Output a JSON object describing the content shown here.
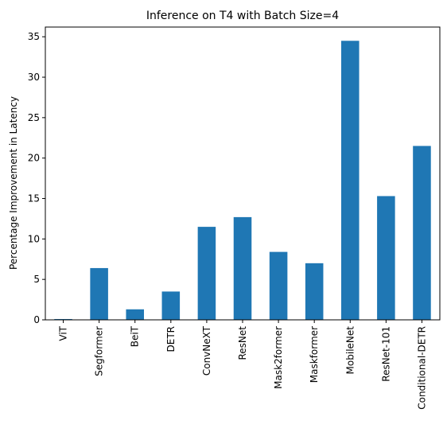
{
  "chart_data": {
    "type": "bar",
    "title": "Inference on T4 with Batch Size=4",
    "xlabel": "",
    "ylabel": "Percentage Improvement in Latency",
    "categories": [
      "ViT",
      "Segformer",
      "BeiT",
      "DETR",
      "ConvNeXT",
      "ResNet",
      "Mask2former",
      "Maskformer",
      "MobileNet",
      "ResNet-101",
      "Conditional-DETR"
    ],
    "values": [
      0.1,
      6.4,
      1.3,
      3.5,
      11.5,
      12.7,
      8.4,
      7.0,
      34.5,
      15.3,
      21.5
    ],
    "ylim": [
      0,
      36.2
    ],
    "yticks": [
      0,
      5,
      10,
      15,
      20,
      25,
      30,
      35
    ],
    "bar_color": "#1f77b4",
    "grid": false,
    "legend": "none"
  }
}
